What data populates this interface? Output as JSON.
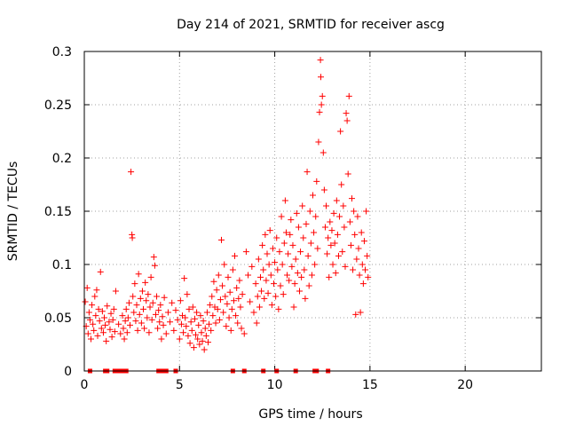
{
  "colors": {
    "series": "#ff0000",
    "axis": "#000000",
    "grid": "#a0a0a0",
    "background": "#ffffff"
  },
  "chart_data": {
    "type": "scatter",
    "title": "Day 214 of 2021, SRMTID for receiver ascg",
    "xlabel": "GPS time / hours",
    "ylabel": "SRMTID / TECUs",
    "xlim": [
      0,
      24
    ],
    "ylim": [
      0,
      0.3
    ],
    "x_ticks": [
      0,
      5,
      10,
      15,
      20
    ],
    "x_tick_labels": [
      "0",
      "5",
      "10",
      "15",
      "20"
    ],
    "y_ticks": [
      0,
      0.05,
      0.1,
      0.15,
      0.2,
      0.25,
      0.3
    ],
    "y_tick_labels": [
      "0",
      "0.05",
      "0.1",
      "0.15",
      "0.2",
      "0.25",
      "0.3"
    ],
    "grid": true,
    "marker": "+",
    "series": [
      {
        "name": "SRMTID",
        "points": [
          [
            0.05,
            0.065
          ],
          [
            0.1,
            0.042
          ],
          [
            0.15,
            0.078
          ],
          [
            0.2,
            0.035
          ],
          [
            0.25,
            0.055
          ],
          [
            0.3,
            0.048
          ],
          [
            0.35,
            0.03
          ],
          [
            0.4,
            0.062
          ],
          [
            0.45,
            0.044
          ],
          [
            0.5,
            0.038
          ],
          [
            0.55,
            0.07
          ],
          [
            0.6,
            0.052
          ],
          [
            0.65,
            0.076
          ],
          [
            0.7,
            0.033
          ],
          [
            0.75,
            0.058
          ],
          [
            0.8,
            0.047
          ],
          [
            0.85,
            0.093
          ],
          [
            0.9,
            0.04
          ],
          [
            0.95,
            0.056
          ],
          [
            1.0,
            0.036
          ],
          [
            1.05,
            0.05
          ],
          [
            1.1,
            0.043
          ],
          [
            1.15,
            0.028
          ],
          [
            1.2,
            0.061
          ],
          [
            1.3,
            0.046
          ],
          [
            1.35,
            0.039
          ],
          [
            1.4,
            0.054
          ],
          [
            1.45,
            0.032
          ],
          [
            1.5,
            0.048
          ],
          [
            1.55,
            0.058
          ],
          [
            1.6,
            0.037
          ],
          [
            1.65,
            0.075
          ],
          [
            1.8,
            0.044
          ],
          [
            1.9,
            0.035
          ],
          [
            2.0,
            0.052
          ],
          [
            2.05,
            0.04
          ],
          [
            2.1,
            0.03
          ],
          [
            2.15,
            0.047
          ],
          [
            2.2,
            0.058
          ],
          [
            2.25,
            0.036
          ],
          [
            2.3,
            0.05
          ],
          [
            2.35,
            0.064
          ],
          [
            2.4,
            0.043
          ],
          [
            2.45,
            0.187
          ],
          [
            2.5,
            0.128
          ],
          [
            2.52,
            0.125
          ],
          [
            2.55,
            0.07
          ],
          [
            2.6,
            0.055
          ],
          [
            2.65,
            0.082
          ],
          [
            2.7,
            0.047
          ],
          [
            2.75,
            0.062
          ],
          [
            2.8,
            0.038
          ],
          [
            2.85,
            0.091
          ],
          [
            2.9,
            0.053
          ],
          [
            2.95,
            0.068
          ],
          [
            3.0,
            0.045
          ],
          [
            3.05,
            0.075
          ],
          [
            3.1,
            0.058
          ],
          [
            3.15,
            0.04
          ],
          [
            3.2,
            0.083
          ],
          [
            3.25,
            0.066
          ],
          [
            3.3,
            0.05
          ],
          [
            3.35,
            0.072
          ],
          [
            3.4,
            0.036
          ],
          [
            3.45,
            0.06
          ],
          [
            3.5,
            0.088
          ],
          [
            3.55,
            0.048
          ],
          [
            3.6,
            0.064
          ],
          [
            3.65,
            0.107
          ],
          [
            3.7,
            0.099
          ],
          [
            3.75,
            0.053
          ],
          [
            3.8,
            0.07
          ],
          [
            3.85,
            0.04
          ],
          [
            3.9,
            0.057
          ],
          [
            3.95,
            0.046
          ],
          [
            4.0,
            0.062
          ],
          [
            4.05,
            0.03
          ],
          [
            4.1,
            0.051
          ],
          [
            4.15,
            0.043
          ],
          [
            4.2,
            0.069
          ],
          [
            4.3,
            0.035
          ],
          [
            4.4,
            0.055
          ],
          [
            4.5,
            0.046
          ],
          [
            4.6,
            0.064
          ],
          [
            4.7,
            0.038
          ],
          [
            4.8,
            0.057
          ],
          [
            4.9,
            0.048
          ],
          [
            5.0,
            0.03
          ],
          [
            5.05,
            0.066
          ],
          [
            5.1,
            0.044
          ],
          [
            5.15,
            0.052
          ],
          [
            5.2,
            0.036
          ],
          [
            5.25,
            0.087
          ],
          [
            5.3,
            0.05
          ],
          [
            5.35,
            0.042
          ],
          [
            5.4,
            0.072
          ],
          [
            5.45,
            0.033
          ],
          [
            5.5,
            0.058
          ],
          [
            5.55,
            0.026
          ],
          [
            5.6,
            0.046
          ],
          [
            5.65,
            0.038
          ],
          [
            5.7,
            0.06
          ],
          [
            5.75,
            0.022
          ],
          [
            5.8,
            0.049
          ],
          [
            5.85,
            0.034
          ],
          [
            5.9,
            0.055
          ],
          [
            5.95,
            0.03
          ],
          [
            6.0,
            0.043
          ],
          [
            6.05,
            0.025
          ],
          [
            6.1,
            0.052
          ],
          [
            6.15,
            0.036
          ],
          [
            6.2,
            0.028
          ],
          [
            6.25,
            0.047
          ],
          [
            6.3,
            0.02
          ],
          [
            6.35,
            0.04
          ],
          [
            6.4,
            0.033
          ],
          [
            6.45,
            0.055
          ],
          [
            6.5,
            0.027
          ],
          [
            6.55,
            0.044
          ],
          [
            6.6,
            0.062
          ],
          [
            6.65,
            0.038
          ],
          [
            6.7,
            0.07
          ],
          [
            6.75,
            0.052
          ],
          [
            6.8,
            0.084
          ],
          [
            6.85,
            0.06
          ],
          [
            6.9,
            0.045
          ],
          [
            6.95,
            0.076
          ],
          [
            7.0,
            0.058
          ],
          [
            7.05,
            0.09
          ],
          [
            7.1,
            0.048
          ],
          [
            7.15,
            0.067
          ],
          [
            7.2,
            0.123
          ],
          [
            7.25,
            0.08
          ],
          [
            7.3,
            0.055
          ],
          [
            7.35,
            0.1
          ],
          [
            7.4,
            0.07
          ],
          [
            7.45,
            0.042
          ],
          [
            7.5,
            0.063
          ],
          [
            7.55,
            0.088
          ],
          [
            7.6,
            0.05
          ],
          [
            7.65,
            0.074
          ],
          [
            7.7,
            0.038
          ],
          [
            7.75,
            0.058
          ],
          [
            7.8,
            0.095
          ],
          [
            7.85,
            0.066
          ],
          [
            7.9,
            0.108
          ],
          [
            7.95,
            0.052
          ],
          [
            8.0,
            0.078
          ],
          [
            8.05,
            0.045
          ],
          [
            8.1,
            0.068
          ],
          [
            8.15,
            0.085
          ],
          [
            8.2,
            0.06
          ],
          [
            8.25,
            0.04
          ],
          [
            8.3,
            0.072
          ],
          [
            8.4,
            0.035
          ],
          [
            8.5,
            0.112
          ],
          [
            8.6,
            0.09
          ],
          [
            8.7,
            0.065
          ],
          [
            8.8,
            0.098
          ],
          [
            8.9,
            0.055
          ],
          [
            9.0,
            0.082
          ],
          [
            9.05,
            0.045
          ],
          [
            9.1,
            0.07
          ],
          [
            9.15,
            0.105
          ],
          [
            9.2,
            0.06
          ],
          [
            9.25,
            0.088
          ],
          [
            9.3,
            0.075
          ],
          [
            9.35,
            0.118
          ],
          [
            9.4,
            0.095
          ],
          [
            9.45,
            0.068
          ],
          [
            9.5,
            0.128
          ],
          [
            9.55,
            0.085
          ],
          [
            9.6,
            0.11
          ],
          [
            9.65,
            0.073
          ],
          [
            9.7,
            0.1
          ],
          [
            9.75,
            0.132
          ],
          [
            9.8,
            0.09
          ],
          [
            9.85,
            0.062
          ],
          [
            9.9,
            0.115
          ],
          [
            9.95,
            0.082
          ],
          [
            10.0,
            0.102
          ],
          [
            10.05,
            0.07
          ],
          [
            10.1,
            0.125
          ],
          [
            10.15,
            0.095
          ],
          [
            10.2,
            0.058
          ],
          [
            10.25,
            0.112
          ],
          [
            10.3,
            0.08
          ],
          [
            10.35,
            0.145
          ],
          [
            10.4,
            0.1
          ],
          [
            10.45,
            0.072
          ],
          [
            10.5,
            0.12
          ],
          [
            10.55,
            0.16
          ],
          [
            10.6,
            0.13
          ],
          [
            10.65,
            0.09
          ],
          [
            10.7,
            0.11
          ],
          [
            10.75,
            0.085
          ],
          [
            10.8,
            0.128
          ],
          [
            10.85,
            0.142
          ],
          [
            10.9,
            0.098
          ],
          [
            10.95,
            0.118
          ],
          [
            11.0,
            0.06
          ],
          [
            11.05,
            0.082
          ],
          [
            11.1,
            0.105
          ],
          [
            11.15,
            0.148
          ],
          [
            11.2,
            0.092
          ],
          [
            11.25,
            0.135
          ],
          [
            11.3,
            0.075
          ],
          [
            11.35,
            0.112
          ],
          [
            11.4,
            0.088
          ],
          [
            11.45,
            0.155
          ],
          [
            11.5,
            0.125
          ],
          [
            11.55,
            0.095
          ],
          [
            11.6,
            0.068
          ],
          [
            11.65,
            0.138
          ],
          [
            11.7,
            0.187
          ],
          [
            11.75,
            0.108
          ],
          [
            11.8,
            0.08
          ],
          [
            11.85,
            0.15
          ],
          [
            11.9,
            0.12
          ],
          [
            11.95,
            0.09
          ],
          [
            12.0,
            0.165
          ],
          [
            12.05,
            0.13
          ],
          [
            12.1,
            0.1
          ],
          [
            12.15,
            0.145
          ],
          [
            12.2,
            0.178
          ],
          [
            12.25,
            0.115
          ],
          [
            12.3,
            0.215
          ],
          [
            12.35,
            0.243
          ],
          [
            12.4,
            0.292
          ],
          [
            12.42,
            0.276
          ],
          [
            12.45,
            0.25
          ],
          [
            12.5,
            0.258
          ],
          [
            12.55,
            0.205
          ],
          [
            12.6,
            0.17
          ],
          [
            12.65,
            0.135
          ],
          [
            12.7,
            0.155
          ],
          [
            12.75,
            0.11
          ],
          [
            12.8,
            0.125
          ],
          [
            12.85,
            0.088
          ],
          [
            12.9,
            0.14
          ],
          [
            12.95,
            0.118
          ],
          [
            13.0,
            0.132
          ],
          [
            13.05,
            0.1
          ],
          [
            13.1,
            0.148
          ],
          [
            13.15,
            0.12
          ],
          [
            13.2,
            0.092
          ],
          [
            13.25,
            0.16
          ],
          [
            13.3,
            0.128
          ],
          [
            13.35,
            0.108
          ],
          [
            13.4,
            0.145
          ],
          [
            13.45,
            0.225
          ],
          [
            13.5,
            0.175
          ],
          [
            13.55,
            0.112
          ],
          [
            13.6,
            0.155
          ],
          [
            13.65,
            0.135
          ],
          [
            13.7,
            0.098
          ],
          [
            13.75,
            0.242
          ],
          [
            13.8,
            0.235
          ],
          [
            13.85,
            0.185
          ],
          [
            13.9,
            0.258
          ],
          [
            13.95,
            0.14
          ],
          [
            14.0,
            0.118
          ],
          [
            14.05,
            0.162
          ],
          [
            14.1,
            0.095
          ],
          [
            14.15,
            0.15
          ],
          [
            14.2,
            0.128
          ],
          [
            14.25,
            0.053
          ],
          [
            14.3,
            0.105
          ],
          [
            14.35,
            0.145
          ],
          [
            14.4,
            0.115
          ],
          [
            14.45,
            0.09
          ],
          [
            14.5,
            0.055
          ],
          [
            14.55,
            0.13
          ],
          [
            14.6,
            0.1
          ],
          [
            14.65,
            0.082
          ],
          [
            14.7,
            0.122
          ],
          [
            14.75,
            0.095
          ],
          [
            14.8,
            0.15
          ],
          [
            14.85,
            0.108
          ],
          [
            14.9,
            0.088
          ]
        ]
      }
    ],
    "baseline_marks_x": [
      0.3,
      1.1,
      1.2,
      1.6,
      1.75,
      1.9,
      2.0,
      2.1,
      2.2,
      3.9,
      4.0,
      4.1,
      4.2,
      4.3,
      4.8,
      7.8,
      8.4,
      9.4,
      10.1,
      11.1,
      12.1,
      12.2,
      12.8
    ]
  }
}
